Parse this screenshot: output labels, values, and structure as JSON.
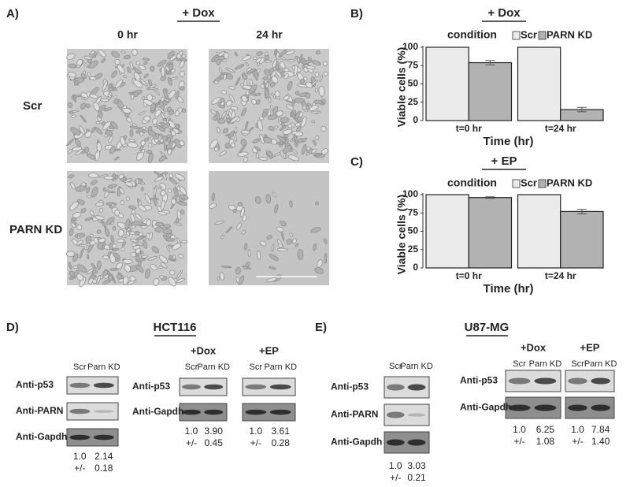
{
  "panel_a": {
    "label": "A)",
    "treatment": "+ Dox",
    "columns": [
      "0 hr",
      "24 hr"
    ],
    "rows": [
      "Scr",
      "PARN KD"
    ]
  },
  "chart_data": [
    {
      "type": "bar",
      "panel_label": "B)",
      "title": "+ Dox",
      "legend_title": "condition",
      "categories": [
        "t=0 hr",
        "t=24 hr"
      ],
      "series": [
        {
          "name": "Scr",
          "color": "#ebebeb",
          "values": [
            100,
            100
          ]
        },
        {
          "name": "PARN KD",
          "color": "#b2b2b2",
          "values": [
            79,
            15
          ],
          "errors": [
            3,
            3
          ]
        }
      ],
      "x_label": "Time (hr)",
      "y_label": "Viable cells (%)",
      "ylim": [
        0,
        100
      ],
      "yticks": [
        0,
        25,
        50,
        75,
        100
      ]
    },
    {
      "type": "bar",
      "panel_label": "C)",
      "title": "+ EP",
      "legend_title": "condition",
      "categories": [
        "t=0 hr",
        "t=24 hr"
      ],
      "series": [
        {
          "name": "Scr",
          "color": "#ebebeb",
          "values": [
            100,
            100
          ]
        },
        {
          "name": "PARN KD",
          "color": "#b2b2b2",
          "values": [
            96,
            77
          ],
          "errors": [
            1,
            3
          ]
        }
      ],
      "x_label": "Time (hr)",
      "y_label": "Viable cells (%)",
      "ylim": [
        0,
        100
      ],
      "yticks": [
        0,
        25,
        50,
        75,
        100
      ]
    }
  ],
  "panel_d": {
    "label": "D)",
    "cell_line": "HCT116",
    "blots": [
      {
        "lanes": [
          "Scr",
          "Parn KD"
        ],
        "rows": [
          "Anti-p53",
          "Anti-PARN",
          "Anti-Gapdh"
        ],
        "quantification": [
          "1.0",
          "2.14"
        ],
        "error": [
          "+/-",
          "0.18"
        ]
      },
      {
        "title": "+Dox",
        "lanes": [
          "Scr",
          "Parn KD"
        ],
        "rows": [
          "Anti-p53",
          "Anti-Gapdh"
        ],
        "quantification": [
          "1.0",
          "3.90"
        ],
        "error": [
          "+/-",
          "0.45"
        ]
      },
      {
        "title": "+EP",
        "lanes": [
          "Scr",
          "Parn KD"
        ],
        "quantification": [
          "1.0",
          "3.61"
        ],
        "error": [
          "+/-",
          "0.28"
        ]
      }
    ]
  },
  "panel_e": {
    "label": "E)",
    "cell_line": "U87-MG",
    "blots": [
      {
        "lanes": [
          "Scr",
          "Parn KD"
        ],
        "rows": [
          "Anti-p53",
          "Anti-PARN",
          "Anti-Gapdh"
        ],
        "quantification": [
          "1.0",
          "3.03"
        ],
        "error": [
          "+/-",
          "0.21"
        ]
      },
      {
        "title": "+Dox",
        "lanes": [
          "Scr",
          "Parn KD"
        ],
        "rows": [
          "Anti-p53",
          "Anti-Gapdh"
        ],
        "quantification": [
          "1.0",
          "6.25"
        ],
        "error": [
          "+/-",
          "1.08"
        ]
      },
      {
        "title": "+EP",
        "lanes": [
          "Scr",
          "Parn KD"
        ],
        "quantification": [
          "1.0",
          "7.84"
        ],
        "error": [
          "+/-",
          "1.40"
        ]
      }
    ]
  }
}
